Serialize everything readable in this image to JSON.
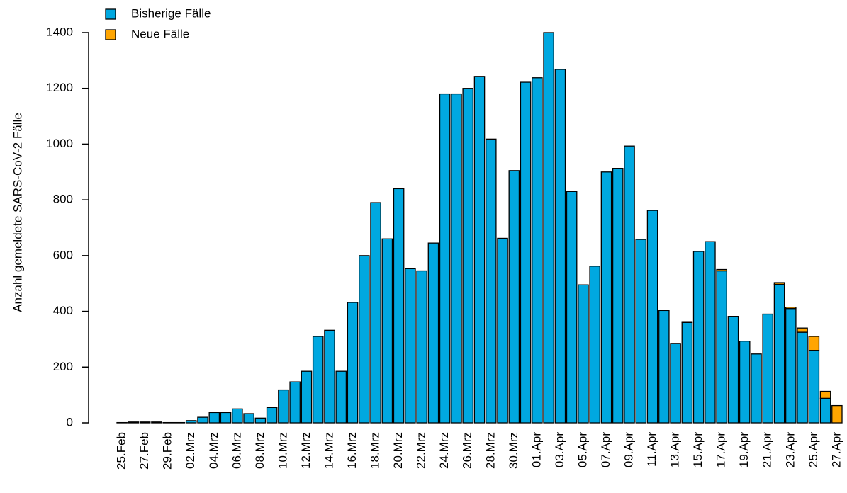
{
  "chart_data": {
    "type": "stacked_bar",
    "y_label": "Anzahl gemeldete SARS-CoV-2 Fälle",
    "categories": [
      "25.Feb",
      null,
      "27.Feb",
      null,
      "29.Feb",
      null,
      "02.Mrz",
      null,
      "04.Mrz",
      null,
      "06.Mrz",
      null,
      "08.Mrz",
      null,
      "10.Mrz",
      null,
      "12.Mrz",
      null,
      "14.Mrz",
      null,
      "16.Mrz",
      null,
      "18.Mrz",
      null,
      "20.Mrz",
      null,
      "22.Mrz",
      null,
      "24.Mrz",
      null,
      "26.Mrz",
      null,
      "28.Mrz",
      null,
      "30.Mrz",
      null,
      "01.Apr",
      null,
      "03.Apr",
      null,
      "05.Apr",
      null,
      "07.Apr",
      null,
      "09.Apr",
      null,
      "11.Apr",
      null,
      "13.Apr",
      null,
      "15.Apr",
      null,
      "17.Apr",
      null,
      "19.Apr",
      null,
      "21.Apr",
      null,
      "23.Apr",
      null,
      "25.Apr",
      null,
      "27.Apr"
    ],
    "series": [
      {
        "name": "Bisherige Fälle",
        "color": "#00a8e0",
        "values": [
          1,
          3,
          3,
          3,
          1,
          1,
          8,
          20,
          37,
          37,
          50,
          33,
          17,
          55,
          118,
          147,
          185,
          310,
          332,
          185,
          432,
          600,
          790,
          660,
          840,
          553,
          545,
          645,
          1180,
          1180,
          1200,
          1243,
          1018,
          662,
          905,
          1222,
          1238,
          1400,
          1268,
          830,
          495,
          562,
          900,
          913,
          993,
          658,
          762,
          403,
          285,
          360,
          615,
          650,
          545,
          382,
          293,
          247,
          390,
          497,
          410,
          325,
          260,
          88,
          0
        ]
      },
      {
        "name": "Neue Fälle",
        "color": "#ffa500",
        "values": [
          0,
          0,
          0,
          0,
          0,
          0,
          0,
          0,
          0,
          0,
          0,
          0,
          0,
          0,
          0,
          0,
          0,
          0,
          0,
          0,
          0,
          0,
          0,
          0,
          0,
          0,
          0,
          0,
          0,
          0,
          0,
          0,
          0,
          0,
          0,
          0,
          0,
          0,
          0,
          0,
          0,
          0,
          0,
          0,
          0,
          0,
          0,
          0,
          0,
          3,
          0,
          0,
          5,
          0,
          0,
          0,
          0,
          6,
          5,
          15,
          50,
          25,
          62
        ]
      }
    ],
    "ylim": [
      0,
      1400
    ],
    "yticks": [
      0,
      200,
      400,
      600,
      800,
      1000,
      1200,
      1400
    ],
    "grid": false,
    "legend": "top-left"
  }
}
